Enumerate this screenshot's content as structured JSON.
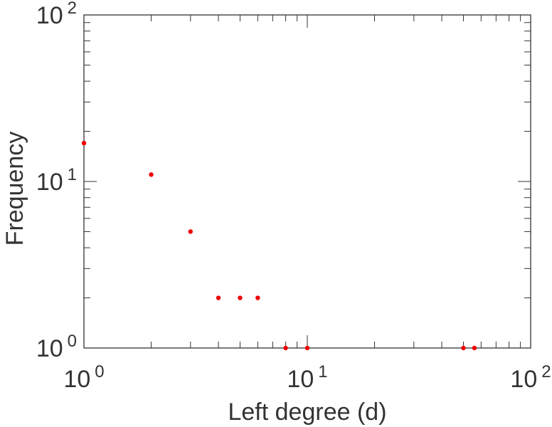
{
  "chart_data": {
    "type": "scatter",
    "title": "",
    "xlabel": "Left degree (d)",
    "ylabel": "Frequency",
    "x_scale": "log",
    "y_scale": "log",
    "xlim": [
      1,
      100
    ],
    "ylim": [
      1,
      100
    ],
    "grid": false,
    "x_ticks": [
      {
        "base": "10",
        "exp": "0",
        "value": 1
      },
      {
        "base": "10",
        "exp": "1",
        "value": 10
      },
      {
        "base": "10",
        "exp": "2",
        "value": 100
      }
    ],
    "y_ticks": [
      {
        "base": "10",
        "exp": "0",
        "value": 1
      },
      {
        "base": "10",
        "exp": "1",
        "value": 10
      },
      {
        "base": "10",
        "exp": "2",
        "value": 100
      }
    ],
    "series": [
      {
        "color": "#ee0000",
        "points": [
          {
            "x": 1,
            "y": 17
          },
          {
            "x": 2,
            "y": 11
          },
          {
            "x": 3,
            "y": 5
          },
          {
            "x": 4,
            "y": 2
          },
          {
            "x": 5,
            "y": 2
          },
          {
            "x": 6,
            "y": 2
          },
          {
            "x": 8,
            "y": 1
          },
          {
            "x": 10,
            "y": 1
          },
          {
            "x": 50,
            "y": 1
          },
          {
            "x": 56,
            "y": 1
          }
        ]
      }
    ]
  }
}
